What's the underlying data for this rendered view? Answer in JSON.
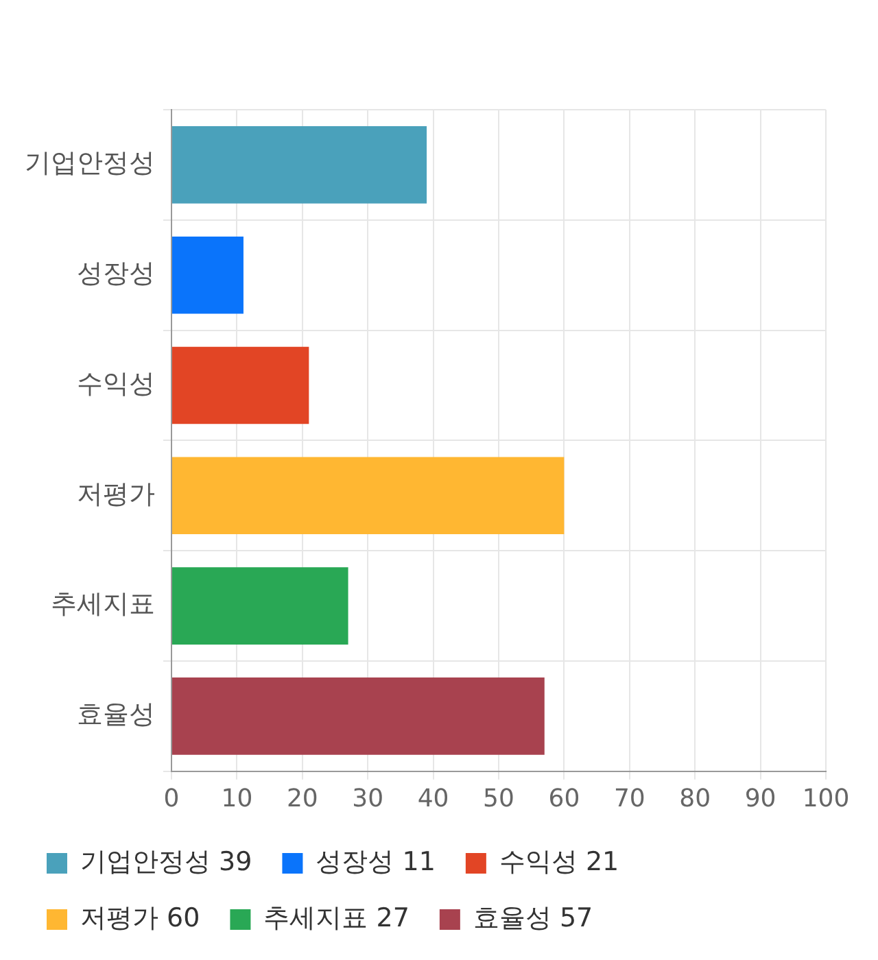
{
  "chart_data": {
    "type": "bar",
    "orientation": "horizontal",
    "stacked": true,
    "categories": [
      "기업안정성",
      "성장성",
      "수익성",
      "저평가",
      "추세지표",
      "효율성"
    ],
    "series": [
      {
        "name": "기업안정성 39",
        "color": "#4aa1bb",
        "values": [
          39,
          null,
          null,
          null,
          null,
          null
        ]
      },
      {
        "name": "성장성 11",
        "color": "#0a74fb",
        "values": [
          null,
          11,
          null,
          null,
          null,
          null
        ]
      },
      {
        "name": "수익성 21",
        "color": "#e24525",
        "values": [
          null,
          null,
          21,
          null,
          null,
          null
        ]
      },
      {
        "name": "저평가 60",
        "color": "#ffb732",
        "values": [
          null,
          null,
          null,
          60,
          null,
          null
        ]
      },
      {
        "name": "추세지표 27",
        "color": "#29a855",
        "values": [
          null,
          null,
          null,
          null,
          27,
          null
        ]
      },
      {
        "name": "효율성 57",
        "color": "#a8424f",
        "values": [
          null,
          null,
          null,
          null,
          null,
          57
        ]
      }
    ],
    "xlim": [
      0,
      100
    ],
    "xticks": [
      0,
      10,
      20,
      30,
      40,
      50,
      60,
      70,
      80,
      90,
      100
    ],
    "grid": true,
    "legend": "bottom"
  }
}
